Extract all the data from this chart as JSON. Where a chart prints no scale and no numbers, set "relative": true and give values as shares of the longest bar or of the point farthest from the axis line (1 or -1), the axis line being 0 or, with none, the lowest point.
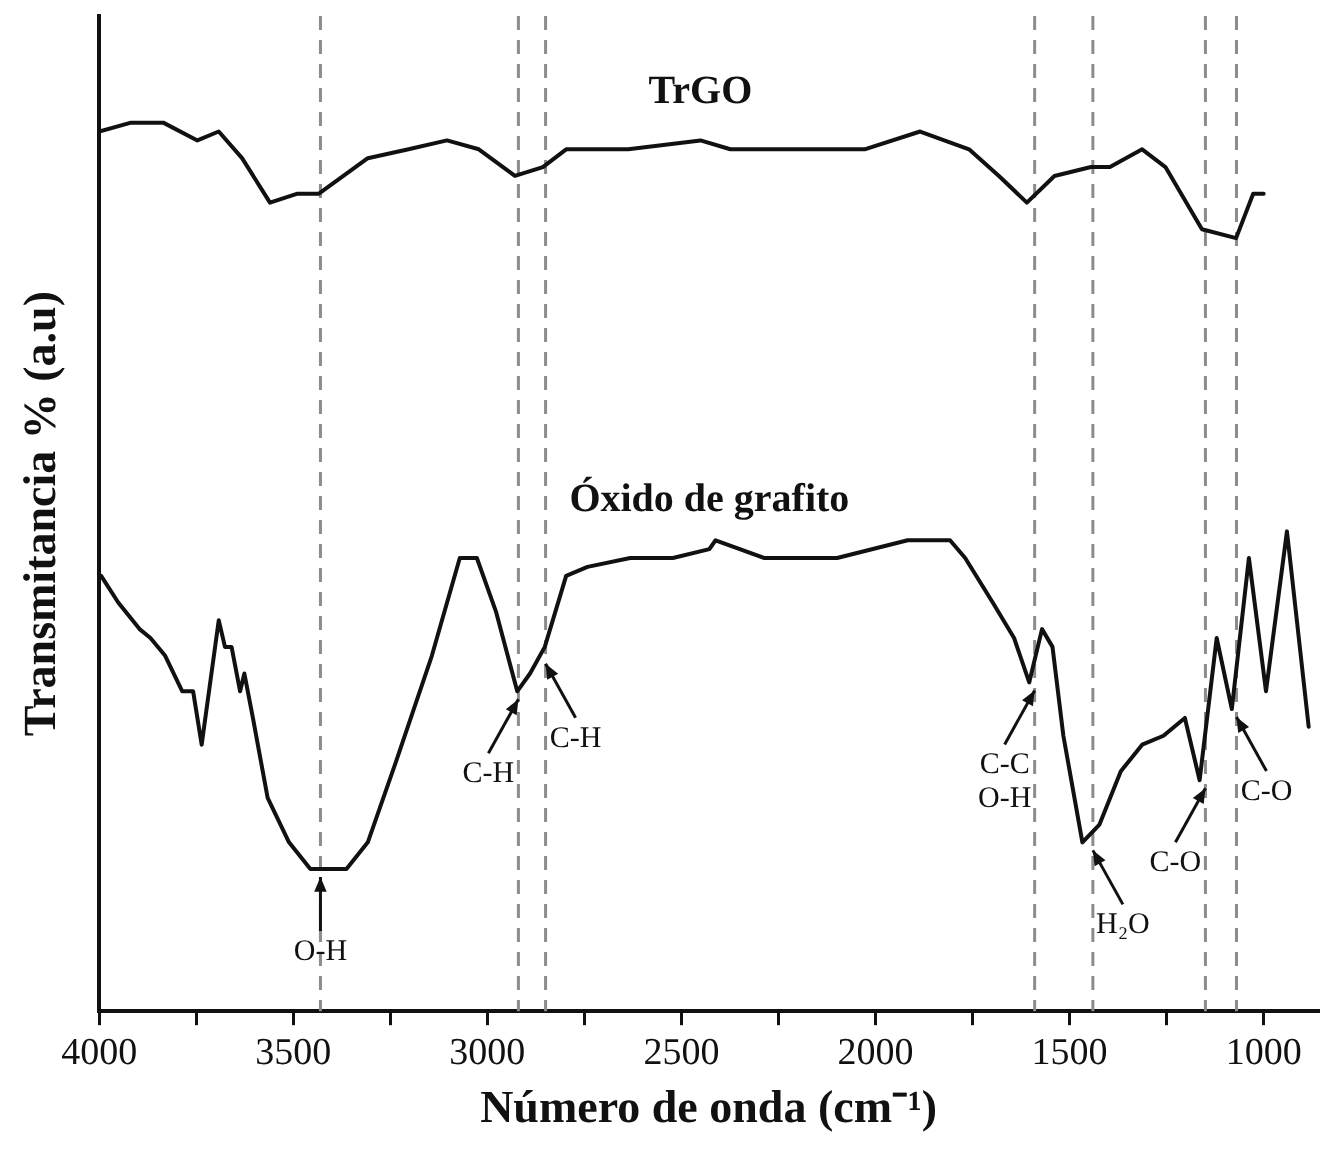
{
  "chart_data": {
    "type": "line",
    "relative": true,
    "xlabel": "Número de onda (cm⁻¹)",
    "ylabel": "Transmitancia % (a.u)",
    "xlim": [
      4000,
      860
    ],
    "xticks": [
      4000,
      {
        "value": 3750,
        "label": null
      },
      3500,
      {
        "value": 3250,
        "label": null
      },
      3000,
      {
        "value": 2750,
        "label": null
      },
      2500,
      {
        "value": 2250,
        "label": null
      },
      2000,
      {
        "value": 1750,
        "label": null
      },
      1500,
      {
        "value": 1250,
        "label": null
      },
      1000
    ],
    "grid": false,
    "legend": false,
    "marker": "none",
    "line_style": "solid",
    "series": [
      {
        "name": "TrGO",
        "color": "#111111",
        "x": [
          4000,
          3918,
          3835,
          3747,
          3692,
          3632,
          3560,
          3489,
          3434,
          3308,
          3203,
          3104,
          3022,
          2929,
          2857,
          2797,
          2637,
          2451,
          2374,
          2231,
          2127,
          2028,
          1885,
          1759,
          1682,
          1610,
          1539,
          1445,
          1396,
          1313,
          1253,
          1159,
          1071,
          1027,
          1000
        ],
        "values": [
          0.99,
          1.0,
          1.0,
          0.98,
          0.99,
          0.96,
          0.91,
          0.92,
          0.92,
          0.96,
          0.97,
          0.98,
          0.97,
          0.94,
          0.95,
          0.97,
          0.97,
          0.98,
          0.97,
          0.97,
          0.97,
          0.97,
          0.99,
          0.97,
          0.94,
          0.91,
          0.94,
          0.95,
          0.95,
          0.97,
          0.95,
          0.88,
          0.87,
          0.92,
          0.92
        ]
      },
      {
        "name": "Óxido de grafito",
        "color": "#111111",
        "x": [
          3995,
          3951,
          3896,
          3868,
          3830,
          3786,
          3758,
          3736,
          3714,
          3692,
          3676,
          3659,
          3637,
          3626,
          3604,
          3566,
          3511,
          3456,
          3401,
          3363,
          3308,
          3236,
          3143,
          3071,
          3027,
          2978,
          2923,
          2890,
          2852,
          2797,
          2742,
          2632,
          2522,
          2428,
          2412,
          2286,
          2099,
          1917,
          1808,
          1769,
          1698,
          1643,
          1604,
          1571,
          1544,
          1516,
          1467,
          1423,
          1368,
          1313,
          1258,
          1203,
          1165,
          1121,
          1082,
          1038,
          994,
          940,
          884
        ],
        "values": [
          0.49,
          0.46,
          0.43,
          0.42,
          0.4,
          0.36,
          0.36,
          0.3,
          0.37,
          0.44,
          0.41,
          0.41,
          0.36,
          0.38,
          0.33,
          0.24,
          0.19,
          0.16,
          0.16,
          0.16,
          0.19,
          0.28,
          0.4,
          0.51,
          0.51,
          0.45,
          0.36,
          0.38,
          0.41,
          0.49,
          0.5,
          0.51,
          0.51,
          0.52,
          0.53,
          0.51,
          0.51,
          0.53,
          0.53,
          0.51,
          0.46,
          0.42,
          0.37,
          0.43,
          0.41,
          0.31,
          0.19,
          0.21,
          0.27,
          0.3,
          0.31,
          0.33,
          0.26,
          0.42,
          0.34,
          0.51,
          0.36,
          0.54,
          0.32
        ]
      }
    ],
    "ref_lines": [
      {
        "axis": "x",
        "value": 3430,
        "color": "#8c8c8c",
        "line_style": "dashed"
      },
      {
        "axis": "x",
        "value": 2920,
        "color": "#8c8c8c",
        "line_style": "dashed"
      },
      {
        "axis": "x",
        "value": 2850,
        "color": "#8c8c8c",
        "line_style": "dashed"
      },
      {
        "axis": "x",
        "value": 1590,
        "color": "#8c8c8c",
        "line_style": "dashed"
      },
      {
        "axis": "x",
        "value": 1440,
        "color": "#8c8c8c",
        "line_style": "dashed"
      },
      {
        "axis": "x",
        "value": 1150,
        "color": "#8c8c8c",
        "line_style": "dashed"
      },
      {
        "axis": "x",
        "value": 1070,
        "color": "#8c8c8c",
        "line_style": "dashed"
      }
    ],
    "annotations": [
      {
        "text": "O-H",
        "x": 3430,
        "y": 0.16
      },
      {
        "text": "C-H",
        "x": 2920,
        "y": 0.36
      },
      {
        "text": "C-H",
        "x": 2850,
        "y": 0.4
      },
      {
        "text": "C-C\nO-H",
        "x": 1590,
        "y": 0.37
      },
      {
        "text": "H₂O",
        "x": 1440,
        "y": 0.19
      },
      {
        "text": "C-O",
        "x": 1150,
        "y": 0.26
      },
      {
        "text": "C-O",
        "x": 1070,
        "y": 0.34
      }
    ]
  }
}
